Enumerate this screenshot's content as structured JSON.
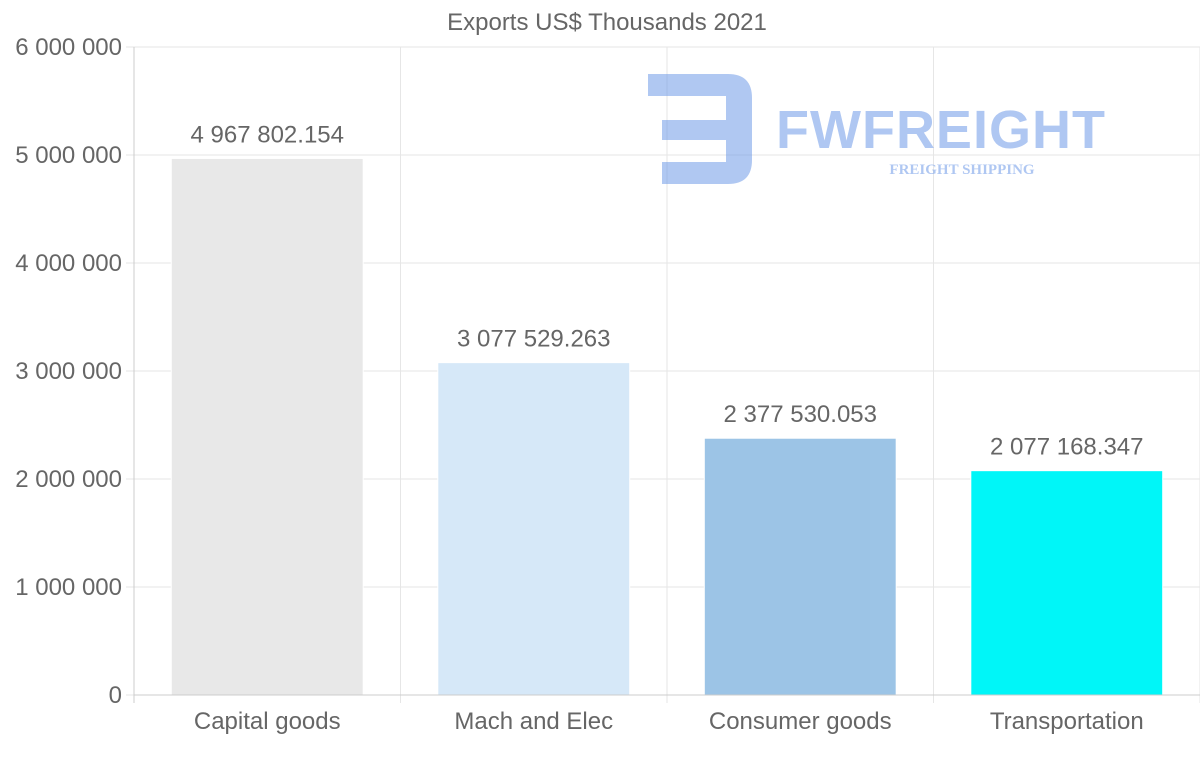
{
  "chart_data": {
    "type": "bar",
    "title": "Exports US$ Thousands 2021",
    "categories": [
      "Capital goods",
      "Mach and Elec",
      "Consumer goods",
      "Transportation"
    ],
    "values": [
      4967802.154,
      3077529.263,
      2377530.053,
      2077168.347
    ],
    "value_labels": [
      "4 967 802.154",
      "3 077 529.263",
      "2 377 530.053",
      "2 077 168.347"
    ],
    "bar_colors": [
      "#e8e8e8",
      "#d6e8f8",
      "#9cc4e6",
      "#00f6f8"
    ],
    "ylim": [
      0,
      6000000
    ],
    "yticks": [
      0,
      1000000,
      2000000,
      3000000,
      4000000,
      5000000,
      6000000
    ],
    "ytick_labels": [
      "0",
      "1 000 000",
      "2 000 000",
      "3 000 000",
      "4 000 000",
      "5 000 000",
      "6 000 000"
    ],
    "xlabel": "",
    "ylabel": "",
    "grid": true,
    "legend": "none"
  },
  "watermark": {
    "brand": "FWFREIGHT",
    "tagline": "FREIGHT SHIPPING",
    "color": "#6f9ae8"
  },
  "colors": {
    "text": "#666666",
    "grid": "#e6e6e6",
    "axis": "#cccccc"
  }
}
